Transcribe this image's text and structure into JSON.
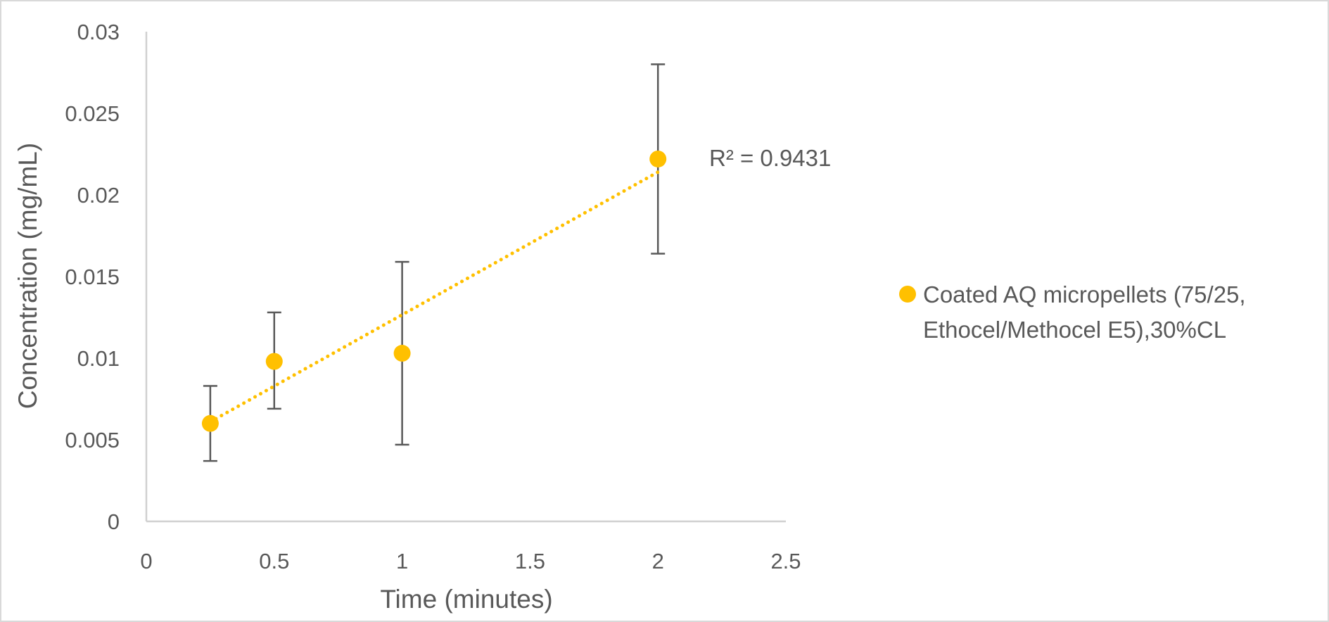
{
  "chart_data": {
    "type": "scatter",
    "title": "",
    "xlabel": "Time (minutes)",
    "ylabel": "Concentration (mg/mL)",
    "xlim": [
      0,
      2.5
    ],
    "ylim": [
      0,
      0.03
    ],
    "x_ticks": [
      "0",
      "0.5",
      "1",
      "1.5",
      "2",
      "2.5"
    ],
    "y_ticks": [
      "0",
      "0.005",
      "0.01",
      "0.015",
      "0.02",
      "0.025",
      "0.03"
    ],
    "grid": false,
    "legend_position": "right",
    "series": [
      {
        "name": "Coated AQ micropellets (75/25, Ethocel/Methocel E5),30%CL",
        "legend_lines": [
          "Coated AQ micropellets (75/25,",
          "Ethocel/Methocel E5),30%CL"
        ],
        "color": "#FFC000",
        "x": [
          0.25,
          0.5,
          1,
          2
        ],
        "y": [
          0.006,
          0.0098,
          0.0103,
          0.0222
        ],
        "error_low": [
          0.0037,
          0.0069,
          0.0047,
          0.0164
        ],
        "error_high": [
          0.0083,
          0.0128,
          0.0159,
          0.028
        ],
        "trendline": {
          "type": "linear",
          "x": [
            0.25,
            2
          ],
          "y": [
            0.0061,
            0.0214
          ],
          "r_squared_label": "R² = 0.9431"
        }
      }
    ]
  }
}
